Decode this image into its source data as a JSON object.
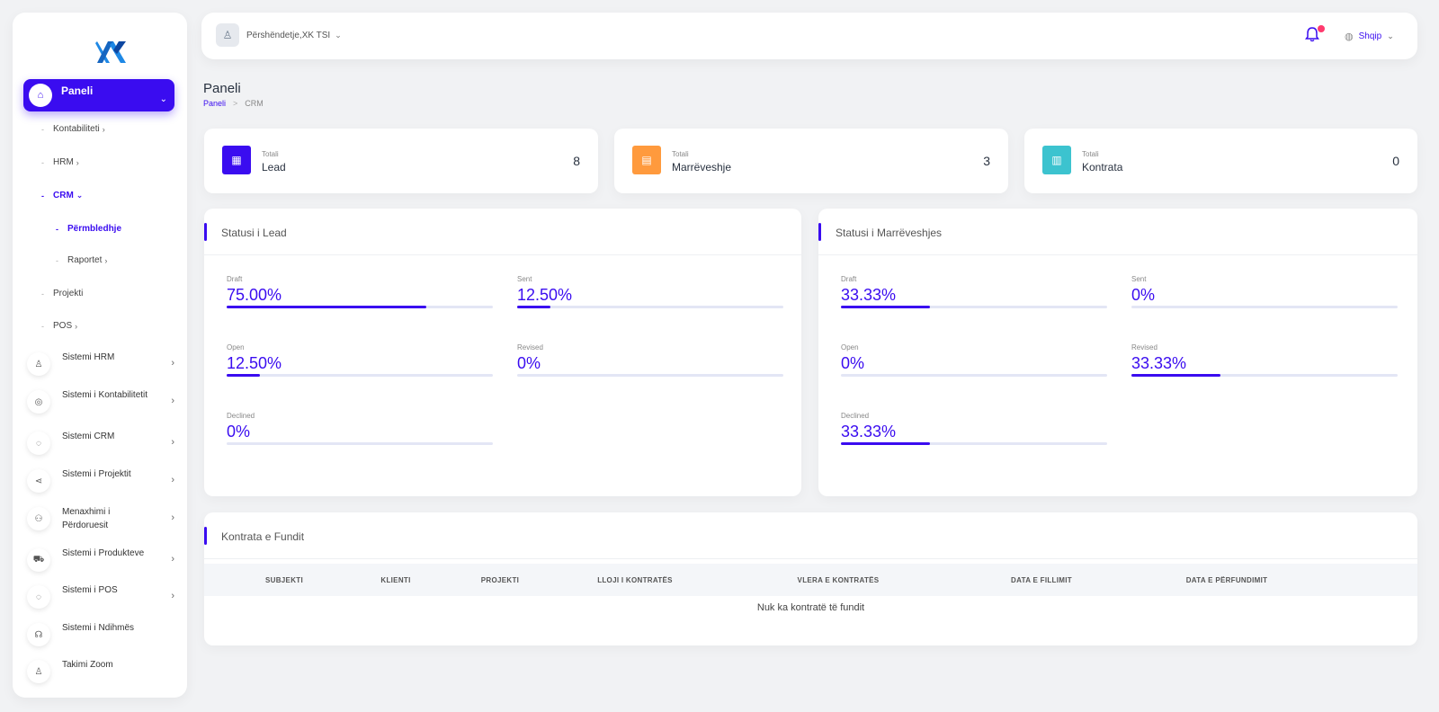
{
  "sidebar": {
    "active_item": "Paneli",
    "sub_items": [
      {
        "label": "Kontabiliteti",
        "arrow": "›"
      },
      {
        "label": "HRM",
        "arrow": "›"
      },
      {
        "label": "CRM",
        "arrow": "⌄",
        "active": true
      },
      {
        "label": "Përmbledhje",
        "active": true
      },
      {
        "label": "Raportet",
        "arrow": "›"
      },
      {
        "label": "Projekti"
      },
      {
        "label": "POS",
        "arrow": "›"
      }
    ],
    "systems": [
      {
        "label": "Sistemi HRM",
        "icon": "user-icon"
      },
      {
        "label": "Sistemi i Kontabilitetit",
        "icon": "accounting-icon"
      },
      {
        "label": "Sistemi CRM",
        "icon": "crm-icon"
      },
      {
        "label": "Sistemi i Projektit",
        "icon": "share-icon"
      },
      {
        "label": "Menaxhimi i Përdoruesit",
        "icon": "users-icon"
      },
      {
        "label": "Sistemi i Produkteve",
        "icon": "cart-icon"
      },
      {
        "label": "Sistemi i POS",
        "icon": "pos-icon"
      },
      {
        "label": "Sistemi i Ndihmës",
        "icon": "headset-icon"
      },
      {
        "label": "Takimi Zoom",
        "icon": "user-plus-icon"
      }
    ]
  },
  "header": {
    "user_label": "Përshëndetje,XK TSI",
    "language": "Shqip"
  },
  "page": {
    "title": "Paneli",
    "breadcrumb": [
      "Paneli",
      "CRM"
    ]
  },
  "stats": [
    {
      "small": "Totali",
      "label": "Lead",
      "value": "8",
      "color": "#3a0cf0"
    },
    {
      "small": "Totali",
      "label": "Marrëveshje",
      "value": "3",
      "color": "#ff9a3d"
    },
    {
      "small": "Totali",
      "label": "Kontrata",
      "value": "0",
      "color": "#3cc3cf"
    }
  ],
  "lead_status": {
    "title": "Statusi i Lead",
    "metrics": [
      {
        "label": "Draft",
        "value": "75.00%",
        "fraction": 0.75
      },
      {
        "label": "Sent",
        "value": "12.50%",
        "fraction": 0.125
      },
      {
        "label": "Open",
        "value": "12.50%",
        "fraction": 0.125
      },
      {
        "label": "Revised",
        "value": "0%",
        "fraction": 0
      },
      {
        "label": "Declined",
        "value": "0%",
        "fraction": 0
      }
    ]
  },
  "deal_status": {
    "title": "Statusi i Marrëveshjes",
    "metrics": [
      {
        "label": "Draft",
        "value": "33.33%",
        "fraction": 0.3333
      },
      {
        "label": "Sent",
        "value": "0%",
        "fraction": 0
      },
      {
        "label": "Open",
        "value": "0%",
        "fraction": 0
      },
      {
        "label": "Revised",
        "value": "33.33%",
        "fraction": 0.3333
      },
      {
        "label": "Declined",
        "value": "33.33%",
        "fraction": 0.3333
      }
    ]
  },
  "contracts": {
    "title": "Kontrata e Fundit",
    "columns": [
      "SUBJEKTI",
      "KLIENTI",
      "PROJEKTI",
      "LLOJI I KONTRATËS",
      "VLERA E KONTRATËS",
      "DATA E FILLIMIT",
      "DATA E PËRFUNDIMIT"
    ],
    "empty_text": "Nuk ka kontratë të fundit"
  }
}
